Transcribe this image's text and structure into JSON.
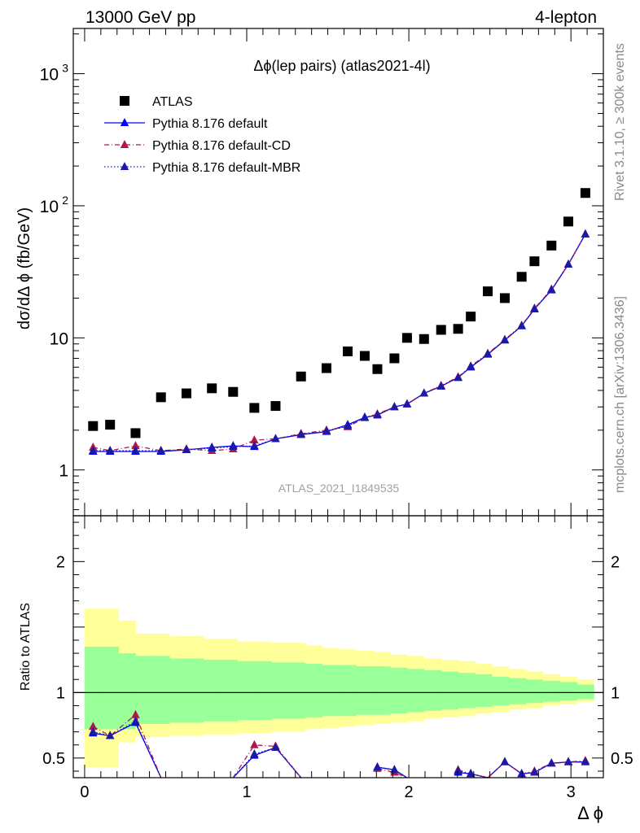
{
  "header": {
    "left": "13000 GeV pp",
    "right": "4-lepton"
  },
  "side_text": {
    "rivet": "Rivet 3.1.10, ≥ 300k events",
    "mcplots": "mcplots.cern.ch [arXiv:1306.3436]"
  },
  "chart_data": [
    {
      "type": "scatter",
      "panel": "main",
      "title": "Δϕ(lep pairs) (atlas2021-4l)",
      "watermark": "ATLAS_2021_I1849535",
      "ylabel": "dσ/dΔ ϕ (fb/GeV)",
      "yscale": "log",
      "ylim": [
        0.45,
        2200
      ],
      "xlim": [
        -0.07,
        3.2
      ],
      "yticks": [
        {
          "v": 1,
          "label": "1"
        },
        {
          "v": 10,
          "label": "10"
        },
        {
          "v": 100,
          "label": "10",
          "sup": "2"
        },
        {
          "v": 1000,
          "label": "10",
          "sup": "3"
        }
      ],
      "legend_position": "top-left",
      "x": [
        0.052,
        0.157,
        0.314,
        0.471,
        0.628,
        0.785,
        0.916,
        1.047,
        1.178,
        1.335,
        1.492,
        1.623,
        1.728,
        1.806,
        1.911,
        1.989,
        2.094,
        2.199,
        2.304,
        2.382,
        2.487,
        2.592,
        2.696,
        2.775,
        2.88,
        2.984,
        3.089
      ],
      "series": [
        {
          "name": "ATLAS",
          "style": "data",
          "color": "#000000",
          "values": [
            2.15,
            2.2,
            1.9,
            3.55,
            3.8,
            4.15,
            3.9,
            2.95,
            3.05,
            5.1,
            5.9,
            7.9,
            7.3,
            5.8,
            7.0,
            10.0,
            9.8,
            11.5,
            11.7,
            14.5,
            22.5,
            20.0,
            29.0,
            38.0,
            50.0,
            76.0,
            125.0
          ]
        },
        {
          "name": "Pythia 8.176 default",
          "style": "solid",
          "color": "#0000ff",
          "values": [
            1.38,
            1.38,
            1.38,
            1.38,
            1.42,
            1.48,
            1.52,
            1.5,
            1.72,
            1.85,
            1.95,
            2.2,
            2.5,
            2.6,
            3.0,
            3.15,
            3.8,
            4.3,
            5.0,
            6.0,
            7.5,
            9.6,
            12.3,
            16.5,
            23.0,
            36.0,
            61.0
          ]
        },
        {
          "name": "Pythia 8.176 default-CD",
          "style": "dashdot",
          "color": "#b2154e",
          "values": [
            1.48,
            1.4,
            1.52,
            1.4,
            1.44,
            1.4,
            1.44,
            1.68,
            1.72,
            1.88,
            2.0,
            2.12,
            2.48,
            2.65,
            3.0,
            3.15,
            3.8,
            4.35,
            5.05,
            6.1,
            7.6,
            9.7,
            12.4,
            16.7,
            23.3,
            36.0,
            61.0
          ]
        },
        {
          "name": "Pythia 8.176 default-MBR",
          "style": "dotted",
          "color": "#1a1aa6",
          "values": [
            1.4,
            1.4,
            1.4,
            1.4,
            1.42,
            1.46,
            1.5,
            1.52,
            1.72,
            1.86,
            1.96,
            2.15,
            2.5,
            2.62,
            3.0,
            3.15,
            3.8,
            4.3,
            5.0,
            6.05,
            7.55,
            9.65,
            12.35,
            16.6,
            23.1,
            36.0,
            61.0
          ]
        }
      ]
    },
    {
      "type": "line",
      "panel": "ratio",
      "ylabel": "Ratio to ATLAS",
      "xlabel": "Δ ϕ",
      "ylim": [
        0.35,
        2.35
      ],
      "xlim": [
        -0.07,
        3.2
      ],
      "xticks": [
        0,
        1,
        2,
        3
      ],
      "yticks": [
        0.5,
        1,
        2
      ],
      "bin_edges": [
        0.0,
        0.105,
        0.209,
        0.314,
        0.419,
        0.524,
        0.628,
        0.733,
        0.838,
        0.942,
        1.047,
        1.152,
        1.257,
        1.361,
        1.466,
        1.571,
        1.676,
        1.78,
        1.885,
        1.99,
        2.094,
        2.199,
        2.304,
        2.409,
        2.513,
        2.618,
        2.723,
        2.827,
        2.932,
        3.037,
        3.141
      ],
      "band_green": [
        [
          0.72,
          1.35
        ],
        [
          0.72,
          1.35
        ],
        [
          0.72,
          1.3
        ],
        [
          0.76,
          1.28
        ],
        [
          0.76,
          1.28
        ],
        [
          0.77,
          1.26
        ],
        [
          0.77,
          1.26
        ],
        [
          0.78,
          1.25
        ],
        [
          0.78,
          1.25
        ],
        [
          0.79,
          1.24
        ],
        [
          0.79,
          1.24
        ],
        [
          0.8,
          1.23
        ],
        [
          0.8,
          1.23
        ],
        [
          0.81,
          1.22
        ],
        [
          0.82,
          1.21
        ],
        [
          0.82,
          1.21
        ],
        [
          0.83,
          1.2
        ],
        [
          0.83,
          1.2
        ],
        [
          0.84,
          1.19
        ],
        [
          0.85,
          1.18
        ],
        [
          0.86,
          1.17
        ],
        [
          0.87,
          1.16
        ],
        [
          0.88,
          1.15
        ],
        [
          0.89,
          1.14
        ],
        [
          0.9,
          1.12
        ],
        [
          0.91,
          1.11
        ],
        [
          0.92,
          1.1
        ],
        [
          0.93,
          1.09
        ],
        [
          0.94,
          1.08
        ],
        [
          0.95,
          1.06
        ]
      ],
      "band_yellow": [
        [
          0.43,
          1.64
        ],
        [
          0.43,
          1.64
        ],
        [
          0.62,
          1.55
        ],
        [
          0.66,
          1.45
        ],
        [
          0.66,
          1.45
        ],
        [
          0.67,
          1.43
        ],
        [
          0.67,
          1.43
        ],
        [
          0.68,
          1.41
        ],
        [
          0.68,
          1.41
        ],
        [
          0.69,
          1.39
        ],
        [
          0.69,
          1.39
        ],
        [
          0.7,
          1.38
        ],
        [
          0.7,
          1.38
        ],
        [
          0.72,
          1.36
        ],
        [
          0.73,
          1.34
        ],
        [
          0.74,
          1.33
        ],
        [
          0.75,
          1.32
        ],
        [
          0.76,
          1.31
        ],
        [
          0.77,
          1.29
        ],
        [
          0.78,
          1.28
        ],
        [
          0.8,
          1.26
        ],
        [
          0.81,
          1.25
        ],
        [
          0.82,
          1.24
        ],
        [
          0.84,
          1.22
        ],
        [
          0.85,
          1.2
        ],
        [
          0.87,
          1.18
        ],
        [
          0.88,
          1.16
        ],
        [
          0.9,
          1.14
        ],
        [
          0.91,
          1.12
        ],
        [
          0.93,
          1.1
        ]
      ],
      "reference": 1.0,
      "series": [
        {
          "name": "Pythia 8.176 default",
          "color": "#0000ff",
          "values": [
            0.69,
            0.67,
            0.77,
            0.35,
            null,
            null,
            0.35,
            0.52,
            0.58,
            0.35,
            null,
            null,
            null,
            0.43,
            0.41,
            0.35,
            null,
            null,
            0.39,
            0.38,
            0.35,
            0.47,
            0.38,
            0.39,
            0.46,
            0.47,
            0.47
          ]
        },
        {
          "name": "Pythia 8.176 default-CD",
          "color": "#b2154e",
          "values": [
            0.74,
            0.67,
            0.83,
            0.35,
            null,
            null,
            0.35,
            0.6,
            0.59,
            0.35,
            null,
            null,
            null,
            0.42,
            0.39,
            0.35,
            null,
            null,
            0.41,
            0.38,
            0.35,
            0.47,
            0.38,
            0.4,
            0.46,
            0.47,
            0.48
          ]
        },
        {
          "name": "Pythia 8.176 default-MBR",
          "color": "#1a1aa6",
          "values": [
            0.7,
            0.67,
            0.78,
            0.35,
            null,
            null,
            0.35,
            0.53,
            0.58,
            0.35,
            null,
            null,
            null,
            0.43,
            0.41,
            0.35,
            null,
            null,
            0.4,
            0.38,
            0.35,
            0.47,
            0.38,
            0.39,
            0.46,
            0.47,
            0.47
          ]
        }
      ]
    }
  ]
}
